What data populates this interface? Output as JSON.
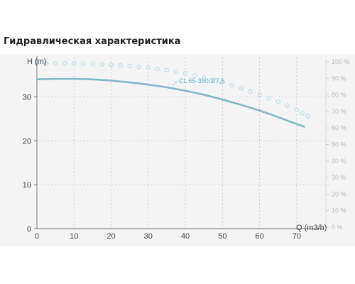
{
  "header": {
    "title": "Гидравлическая характеристика"
  },
  "chart_data": {
    "type": "line",
    "xlabel": "Q (m3/h)",
    "ylabel": "H (m)",
    "xlim": [
      0,
      75
    ],
    "ylim": [
      0,
      38
    ],
    "x_ticks": [
      0,
      10,
      20,
      30,
      40,
      50,
      60,
      70
    ],
    "y_ticks": [
      0,
      10,
      20,
      30
    ],
    "y2lim": [
      0,
      100
    ],
    "y2_ticks": [
      0,
      10,
      20,
      30,
      40,
      50,
      60,
      70,
      80,
      90,
      100
    ],
    "y2_tick_labels": [
      "0 %",
      "10 %",
      "20 %",
      "30 %",
      "40 %",
      "50 %",
      "60 %",
      "70 %",
      "80 %",
      "90 %",
      "100 %"
    ],
    "grid": true,
    "series": [
      {
        "name": "CL 65-350/2/7,5",
        "axis": "left",
        "style": "solid",
        "color": "#7fb8c9",
        "x": [
          0,
          5,
          10,
          15,
          20,
          25,
          30,
          35,
          40,
          45,
          50,
          55,
          60,
          65,
          72
        ],
        "values": [
          34,
          34.1,
          34.1,
          34,
          33.7,
          33.3,
          32.8,
          32.2,
          31.4,
          30.5,
          29.4,
          28.2,
          26.9,
          25.4,
          23.2
        ]
      },
      {
        "axis": "right",
        "style": "dotted",
        "color": "#b9dbe6",
        "x": [
          0,
          5,
          10,
          15,
          20,
          25,
          30,
          35,
          40,
          45,
          50,
          55,
          60,
          65,
          70,
          73
        ],
        "values": [
          99,
          99,
          99,
          98.7,
          98.2,
          97.5,
          96.5,
          95,
          93,
          90.5,
          87.5,
          84,
          80,
          76,
          71,
          67
        ]
      }
    ]
  }
}
